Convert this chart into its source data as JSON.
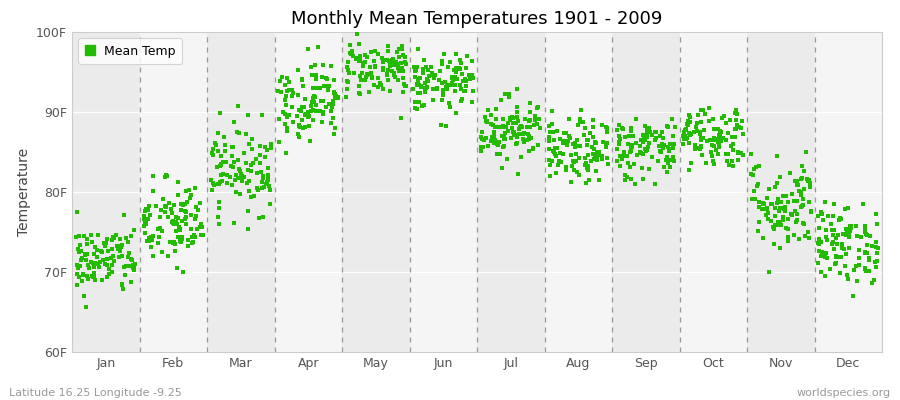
{
  "title": "Monthly Mean Temperatures 1901 - 2009",
  "ylabel": "Temperature",
  "xlabel_labels": [
    "Jan",
    "Feb",
    "Mar",
    "Apr",
    "May",
    "Jun",
    "Jul",
    "Aug",
    "Sep",
    "Oct",
    "Nov",
    "Dec"
  ],
  "ytick_labels": [
    "60F",
    "70F",
    "80F",
    "90F",
    "100F"
  ],
  "ytick_values": [
    60,
    70,
    80,
    90,
    100
  ],
  "ylim": [
    60,
    100
  ],
  "legend_label": "Mean Temp",
  "dot_color": "#22bb00",
  "bg_color_light": "#f5f5f5",
  "bg_color_dark": "#ebebeb",
  "subtitle_left": "Latitude 16.25 Longitude -9.25",
  "subtitle_right": "worldspecies.org",
  "monthly_means": [
    71.5,
    76.0,
    83.0,
    91.5,
    95.5,
    93.5,
    88.0,
    85.0,
    85.5,
    87.0,
    78.5,
    73.5
  ],
  "monthly_stds": [
    2.2,
    2.8,
    2.8,
    2.5,
    1.8,
    1.8,
    2.0,
    2.0,
    2.0,
    2.0,
    3.0,
    2.5
  ],
  "n_years": 109
}
